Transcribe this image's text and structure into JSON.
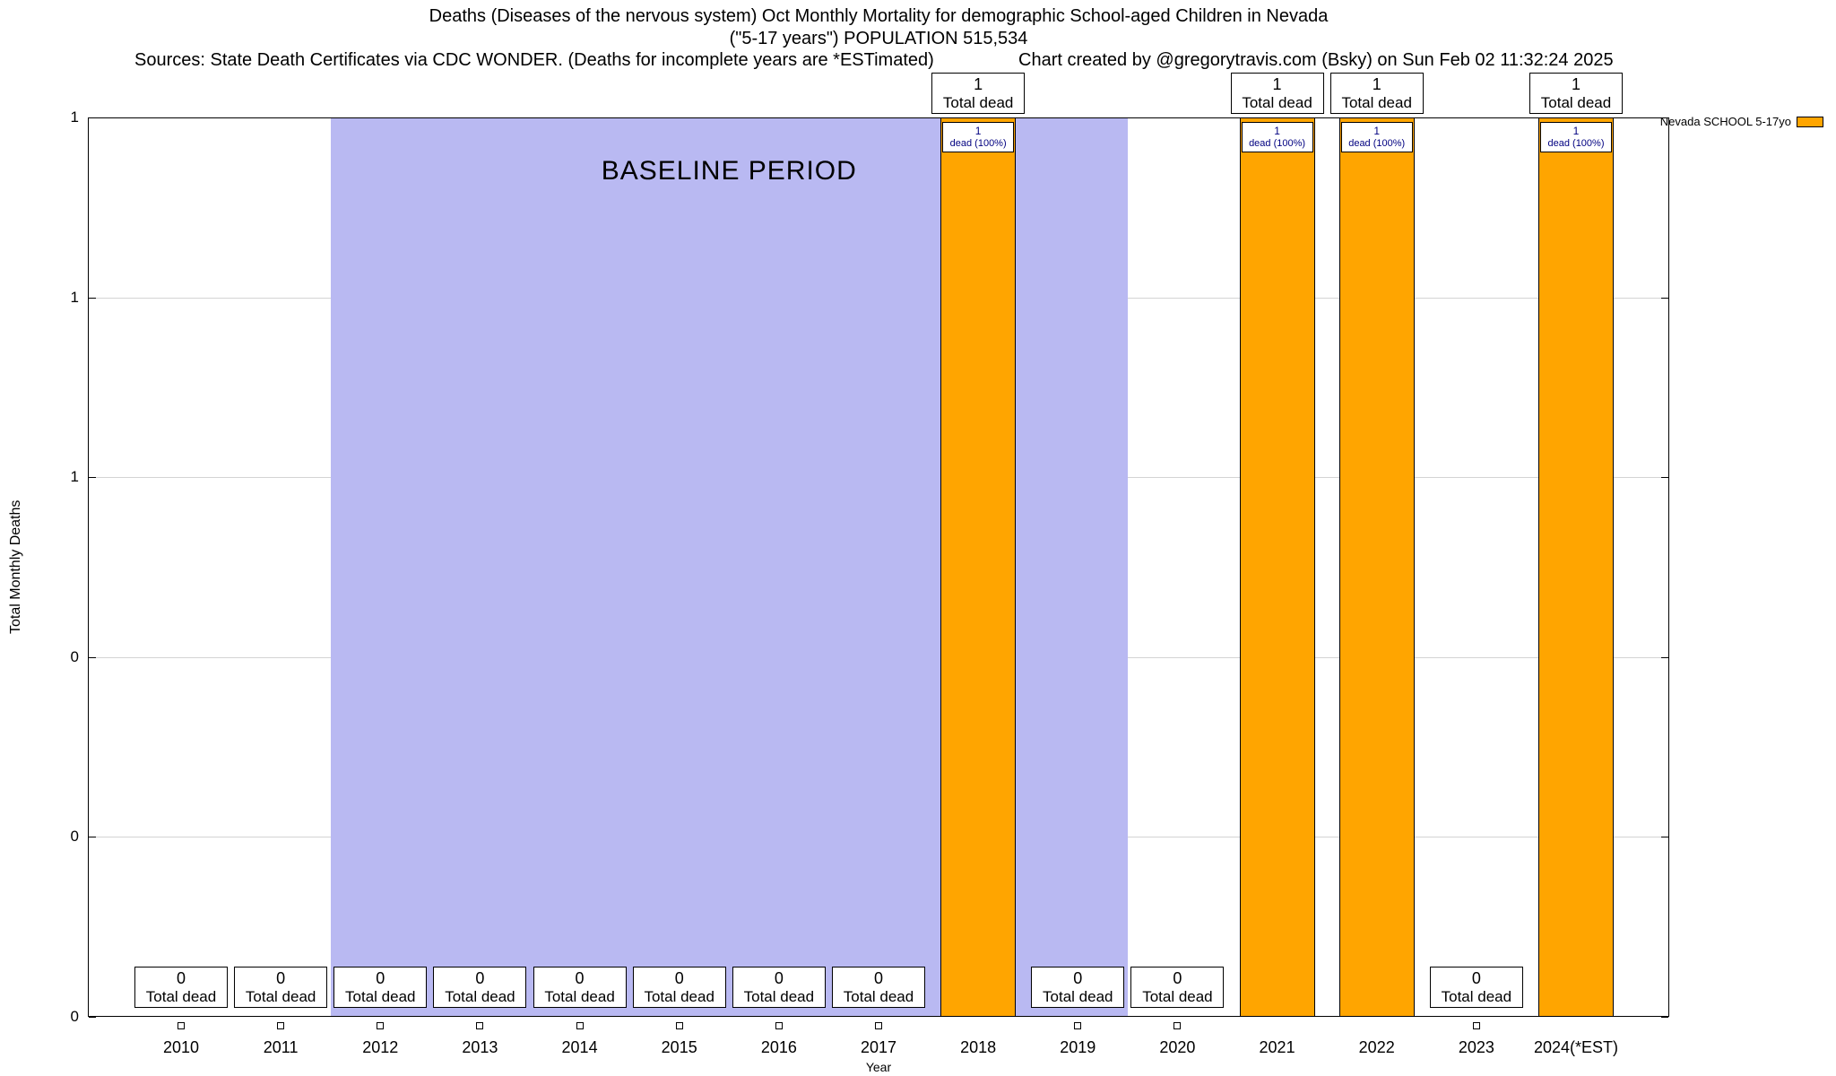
{
  "chart_data": {
    "type": "bar",
    "title_lines": [
      "Deaths (Diseases of the nervous system) Oct Monthly Mortality for demographic School-aged Children in Nevada",
      "(\"5-17 years\") POPULATION 515,534"
    ],
    "sources_note": "Sources: State Death Certificates via CDC WONDER. (Deaths for incomplete years are *ESTimated)",
    "credit": "Chart created by @gregorytravis.com (Bsky) on Sun Feb 02 11:32:24 2025",
    "xlabel": "Year",
    "ylabel": "Total Monthly Deaths",
    "ylim": [
      0,
      1
    ],
    "grid": "horizontal",
    "yticks": {
      "values": [
        0,
        0.2,
        0.4,
        0.6,
        0.8,
        1
      ],
      "labels": [
        "0",
        "0",
        "0",
        "1",
        "1",
        "1"
      ]
    },
    "categories": [
      "2010",
      "2011",
      "2012",
      "2013",
      "2014",
      "2015",
      "2016",
      "2017",
      "2018",
      "2019",
      "2020",
      "2021",
      "2022",
      "2023",
      "2024(*EST)"
    ],
    "values": [
      0,
      0,
      0,
      0,
      0,
      0,
      0,
      0,
      1,
      0,
      0,
      1,
      1,
      0,
      1
    ],
    "bar_color": "#FFA500",
    "legend": {
      "label": "Nevada SCHOOL 5-17yo",
      "position": "top-right-outside"
    },
    "baseline_band": {
      "label": "BASELINE PERIOD",
      "start_category": "2012",
      "end_category": "2019",
      "color": "#b9b9f2"
    },
    "annotations": {
      "bar_top": {
        "value": "1",
        "label": "Total dead"
      },
      "bar_inner": {
        "value": "1",
        "label": "dead (100%)"
      },
      "zero": {
        "value": "0",
        "label": "Total dead"
      }
    }
  }
}
